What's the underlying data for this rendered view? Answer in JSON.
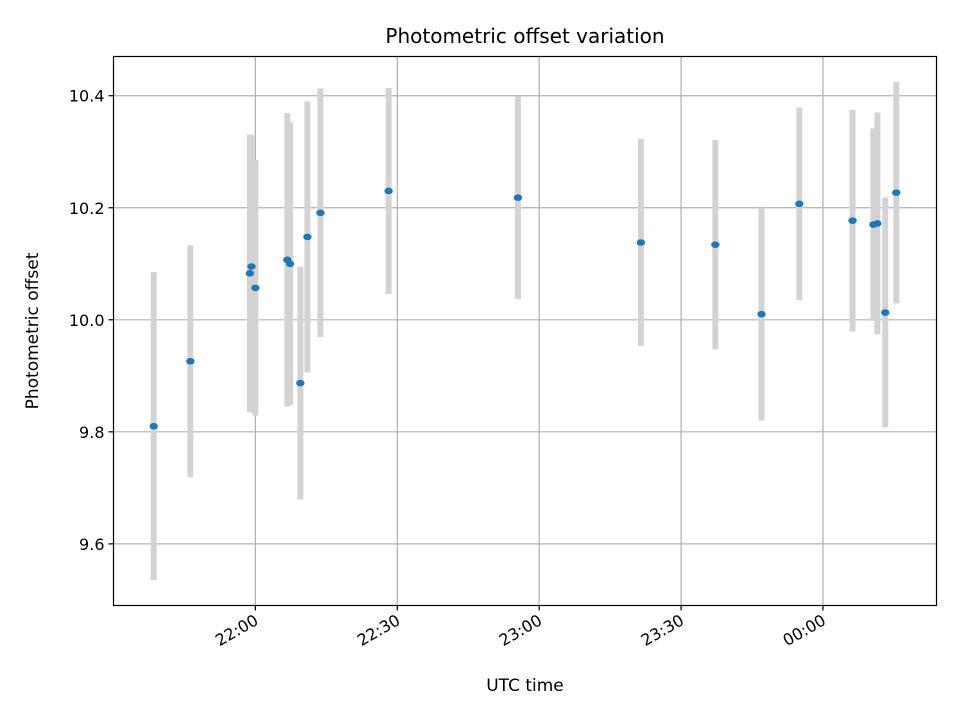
{
  "chart_data": {
    "type": "scatter",
    "title": "Photometric offset variation",
    "xlabel": "UTC time",
    "ylabel": "Photometric offset",
    "x_axis_type": "time",
    "xlim": [
      "21:30",
      "00:24"
    ],
    "ylim": [
      9.49,
      10.47
    ],
    "xticks": [
      "22:00",
      "22:30",
      "23:00",
      "23:30",
      "00:00"
    ],
    "yticks": [
      9.6,
      9.8,
      10.0,
      10.2,
      10.4
    ],
    "grid": true,
    "colors": {
      "points": "#1f77b4",
      "error_bars": "#d3d3d3",
      "grid": "#b0b0b0"
    },
    "points": [
      {
        "x": "21:38:30",
        "y": 9.81,
        "yerr": 0.275
      },
      {
        "x": "21:46:15",
        "y": 9.926,
        "yerr": 0.207
      },
      {
        "x": "21:58:50",
        "y": 10.083,
        "yerr": 0.248
      },
      {
        "x": "21:59:10",
        "y": 10.095,
        "yerr": 0.235
      },
      {
        "x": "22:00:00",
        "y": 10.057,
        "yerr": 0.228
      },
      {
        "x": "22:06:45",
        "y": 10.107,
        "yerr": 0.262
      },
      {
        "x": "22:07:20",
        "y": 10.1,
        "yerr": 0.252
      },
      {
        "x": "22:09:30",
        "y": 9.887,
        "yerr": 0.208
      },
      {
        "x": "22:11:00",
        "y": 10.148,
        "yerr": 0.242
      },
      {
        "x": "22:13:45",
        "y": 10.191,
        "yerr": 0.222
      },
      {
        "x": "22:28:10",
        "y": 10.23,
        "yerr": 0.184
      },
      {
        "x": "22:55:30",
        "y": 10.218,
        "yerr": 0.181
      },
      {
        "x": "23:21:30",
        "y": 10.138,
        "yerr": 0.185
      },
      {
        "x": "23:37:15",
        "y": 10.134,
        "yerr": 0.187
      },
      {
        "x": "23:47:00",
        "y": 10.01,
        "yerr": 0.19
      },
      {
        "x": "23:55:00",
        "y": 10.207,
        "yerr": 0.172
      },
      {
        "x": "00:06:15",
        "y": 10.177,
        "yerr": 0.198
      },
      {
        "x": "00:10:40",
        "y": 10.17,
        "yerr": 0.172
      },
      {
        "x": "00:11:30",
        "y": 10.172,
        "yerr": 0.198
      },
      {
        "x": "00:13:10",
        "y": 10.013,
        "yerr": 0.205
      },
      {
        "x": "00:15:30",
        "y": 10.227,
        "yerr": 0.198
      }
    ]
  }
}
